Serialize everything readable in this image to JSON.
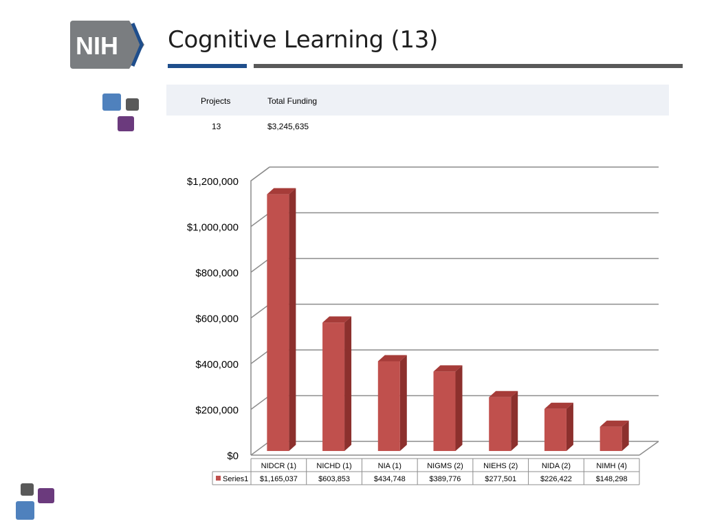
{
  "slide": {
    "logo_text": "NIH",
    "title": "Cognitive Learning (13)"
  },
  "summary": {
    "headers": [
      "Projects",
      "Total Funding"
    ],
    "row": [
      "13",
      "$3,245,635"
    ]
  },
  "colors": {
    "bar_front": "#c0504d",
    "bar_side": "#8c302d",
    "bar_top": "#a63c39",
    "rule_blue": "#1f4e8c",
    "rule_gray": "#595959",
    "deco_blue": "#4f81bd",
    "deco_gray": "#595959",
    "deco_purple": "#6b3a7d"
  },
  "chart_data": {
    "type": "bar",
    "categories": [
      "NIDCR (1)",
      "NICHD (1)",
      "NIA (1)",
      "NIGMS (2)",
      "NIEHS (2)",
      "NIDA (2)",
      "NIMH (4)"
    ],
    "series": [
      {
        "name": "Series1",
        "values": [
          1165037,
          603853,
          434748,
          389776,
          277501,
          226422,
          148298
        ],
        "value_labels": [
          "$1,165,037",
          "$603,853",
          "$434,748",
          "$389,776",
          "$277,501",
          "$226,422",
          "$148,298"
        ]
      }
    ],
    "y_ticks": [
      "$0",
      "$200,000",
      "$400,000",
      "$600,000",
      "$800,000",
      "$1,000,000",
      "$1,200,000"
    ],
    "ylim": [
      0,
      1200000
    ],
    "grid": true,
    "style": "3d-column",
    "data_table": true
  }
}
